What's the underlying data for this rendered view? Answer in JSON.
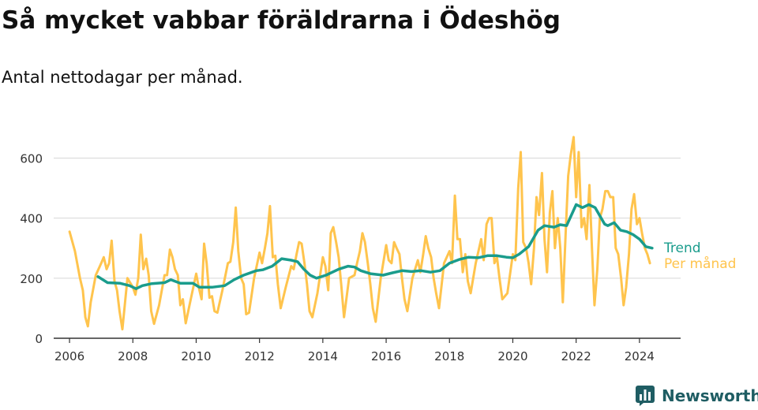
{
  "title": "Så mycket vabbar föräldrarna i Ödeshög",
  "subtitle": "Antal nettodagar per månad.",
  "brand": {
    "name": "Newsworthy",
    "icon": "bar-chart-logo-icon"
  },
  "colors": {
    "trend": "#1a9c8c",
    "monthly": "#ffc44d",
    "grid": "#d7d7d7",
    "axis": "#333333",
    "brand": "#1f5d63"
  },
  "chart_data": {
    "type": "line",
    "title": "Så mycket vabbar föräldrarna i Ödeshög",
    "xlabel": "",
    "ylabel": "",
    "xlim": [
      2005.5,
      2025.3
    ],
    "ylim": [
      0,
      680
    ],
    "yticks": [
      0,
      200,
      400,
      600
    ],
    "xticks": [
      2006,
      2008,
      2010,
      2012,
      2014,
      2016,
      2018,
      2020,
      2022,
      2024
    ],
    "grid": true,
    "legend": "right-end-labels",
    "series": [
      {
        "name": "Per månad",
        "key": "monthly",
        "points": [
          [
            2006.0,
            355
          ],
          [
            2006.17,
            290
          ],
          [
            2006.33,
            200
          ],
          [
            2006.42,
            160
          ],
          [
            2006.5,
            70
          ],
          [
            2006.58,
            40
          ],
          [
            2006.67,
            120
          ],
          [
            2006.83,
            210
          ],
          [
            2007.0,
            250
          ],
          [
            2007.08,
            270
          ],
          [
            2007.17,
            230
          ],
          [
            2007.25,
            250
          ],
          [
            2007.33,
            325
          ],
          [
            2007.42,
            190
          ],
          [
            2007.5,
            160
          ],
          [
            2007.58,
            90
          ],
          [
            2007.67,
            30
          ],
          [
            2007.83,
            200
          ],
          [
            2008.0,
            170
          ],
          [
            2008.08,
            145
          ],
          [
            2008.17,
            200
          ],
          [
            2008.25,
            345
          ],
          [
            2008.33,
            230
          ],
          [
            2008.42,
            265
          ],
          [
            2008.5,
            210
          ],
          [
            2008.58,
            90
          ],
          [
            2008.67,
            48
          ],
          [
            2008.83,
            110
          ],
          [
            2009.0,
            210
          ],
          [
            2009.08,
            210
          ],
          [
            2009.17,
            295
          ],
          [
            2009.25,
            270
          ],
          [
            2009.33,
            230
          ],
          [
            2009.42,
            210
          ],
          [
            2009.5,
            110
          ],
          [
            2009.58,
            130
          ],
          [
            2009.67,
            50
          ],
          [
            2009.83,
            130
          ],
          [
            2010.0,
            215
          ],
          [
            2010.08,
            170
          ],
          [
            2010.17,
            130
          ],
          [
            2010.25,
            315
          ],
          [
            2010.33,
            250
          ],
          [
            2010.42,
            135
          ],
          [
            2010.5,
            140
          ],
          [
            2010.58,
            90
          ],
          [
            2010.67,
            85
          ],
          [
            2010.83,
            160
          ],
          [
            2011.0,
            250
          ],
          [
            2011.08,
            255
          ],
          [
            2011.17,
            320
          ],
          [
            2011.25,
            435
          ],
          [
            2011.33,
            290
          ],
          [
            2011.42,
            200
          ],
          [
            2011.5,
            180
          ],
          [
            2011.58,
            80
          ],
          [
            2011.67,
            85
          ],
          [
            2011.83,
            200
          ],
          [
            2012.0,
            285
          ],
          [
            2012.08,
            250
          ],
          [
            2012.17,
            300
          ],
          [
            2012.25,
            350
          ],
          [
            2012.33,
            440
          ],
          [
            2012.42,
            270
          ],
          [
            2012.5,
            275
          ],
          [
            2012.58,
            180
          ],
          [
            2012.67,
            100
          ],
          [
            2012.83,
            170
          ],
          [
            2013.0,
            240
          ],
          [
            2013.08,
            230
          ],
          [
            2013.17,
            280
          ],
          [
            2013.25,
            320
          ],
          [
            2013.33,
            315
          ],
          [
            2013.42,
            250
          ],
          [
            2013.5,
            180
          ],
          [
            2013.58,
            90
          ],
          [
            2013.67,
            70
          ],
          [
            2013.83,
            150
          ],
          [
            2014.0,
            270
          ],
          [
            2014.08,
            240
          ],
          [
            2014.17,
            160
          ],
          [
            2014.25,
            350
          ],
          [
            2014.33,
            370
          ],
          [
            2014.42,
            320
          ],
          [
            2014.5,
            270
          ],
          [
            2014.58,
            180
          ],
          [
            2014.67,
            70
          ],
          [
            2014.83,
            200
          ],
          [
            2015.0,
            210
          ],
          [
            2015.08,
            250
          ],
          [
            2015.17,
            290
          ],
          [
            2015.25,
            350
          ],
          [
            2015.33,
            320
          ],
          [
            2015.42,
            250
          ],
          [
            2015.5,
            180
          ],
          [
            2015.58,
            100
          ],
          [
            2015.67,
            55
          ],
          [
            2015.83,
            200
          ],
          [
            2016.0,
            310
          ],
          [
            2016.08,
            260
          ],
          [
            2016.17,
            250
          ],
          [
            2016.25,
            320
          ],
          [
            2016.33,
            300
          ],
          [
            2016.42,
            280
          ],
          [
            2016.5,
            200
          ],
          [
            2016.58,
            130
          ],
          [
            2016.67,
            90
          ],
          [
            2016.83,
            200
          ],
          [
            2017.0,
            260
          ],
          [
            2017.08,
            220
          ],
          [
            2017.17,
            280
          ],
          [
            2017.25,
            340
          ],
          [
            2017.33,
            300
          ],
          [
            2017.42,
            270
          ],
          [
            2017.5,
            200
          ],
          [
            2017.58,
            150
          ],
          [
            2017.67,
            100
          ],
          [
            2017.83,
            250
          ],
          [
            2018.0,
            290
          ],
          [
            2018.08,
            250
          ],
          [
            2018.17,
            475
          ],
          [
            2018.25,
            330
          ],
          [
            2018.33,
            330
          ],
          [
            2018.42,
            220
          ],
          [
            2018.5,
            280
          ],
          [
            2018.58,
            190
          ],
          [
            2018.67,
            150
          ],
          [
            2018.83,
            250
          ],
          [
            2019.0,
            330
          ],
          [
            2019.08,
            260
          ],
          [
            2019.17,
            380
          ],
          [
            2019.25,
            400
          ],
          [
            2019.33,
            400
          ],
          [
            2019.42,
            250
          ],
          [
            2019.5,
            270
          ],
          [
            2019.58,
            200
          ],
          [
            2019.67,
            130
          ],
          [
            2019.83,
            150
          ],
          [
            2020.0,
            280
          ],
          [
            2020.08,
            260
          ],
          [
            2020.17,
            500
          ],
          [
            2020.25,
            620
          ],
          [
            2020.33,
            320
          ],
          [
            2020.42,
            300
          ],
          [
            2020.5,
            250
          ],
          [
            2020.58,
            180
          ],
          [
            2020.67,
            300
          ],
          [
            2020.75,
            470
          ],
          [
            2020.83,
            410
          ],
          [
            2020.92,
            550
          ],
          [
            2021.0,
            330
          ],
          [
            2021.08,
            220
          ],
          [
            2021.17,
            420
          ],
          [
            2021.25,
            490
          ],
          [
            2021.33,
            300
          ],
          [
            2021.42,
            400
          ],
          [
            2021.5,
            300
          ],
          [
            2021.58,
            120
          ],
          [
            2021.67,
            350
          ],
          [
            2021.75,
            540
          ],
          [
            2021.83,
            610
          ],
          [
            2021.92,
            670
          ],
          [
            2022.0,
            470
          ],
          [
            2022.08,
            620
          ],
          [
            2022.17,
            370
          ],
          [
            2022.25,
            400
          ],
          [
            2022.33,
            330
          ],
          [
            2022.42,
            510
          ],
          [
            2022.5,
            300
          ],
          [
            2022.58,
            110
          ],
          [
            2022.67,
            230
          ],
          [
            2022.75,
            400
          ],
          [
            2022.83,
            430
          ],
          [
            2022.92,
            490
          ],
          [
            2023.0,
            490
          ],
          [
            2023.08,
            470
          ],
          [
            2023.17,
            470
          ],
          [
            2023.25,
            300
          ],
          [
            2023.33,
            280
          ],
          [
            2023.42,
            200
          ],
          [
            2023.5,
            110
          ],
          [
            2023.58,
            170
          ],
          [
            2023.67,
            280
          ],
          [
            2023.75,
            430
          ],
          [
            2023.83,
            480
          ],
          [
            2023.92,
            380
          ],
          [
            2024.0,
            400
          ],
          [
            2024.08,
            350
          ],
          [
            2024.17,
            300
          ],
          [
            2024.25,
            280
          ],
          [
            2024.33,
            250
          ]
        ]
      },
      {
        "name": "Trend",
        "key": "trend",
        "points": [
          [
            2006.9,
            205
          ],
          [
            2007.2,
            185
          ],
          [
            2007.6,
            183
          ],
          [
            2007.9,
            175
          ],
          [
            2008.1,
            165
          ],
          [
            2008.3,
            175
          ],
          [
            2008.6,
            182
          ],
          [
            2009.0,
            185
          ],
          [
            2009.2,
            195
          ],
          [
            2009.5,
            183
          ],
          [
            2009.9,
            183
          ],
          [
            2010.1,
            170
          ],
          [
            2010.5,
            170
          ],
          [
            2010.9,
            175
          ],
          [
            2011.2,
            195
          ],
          [
            2011.5,
            210
          ],
          [
            2011.9,
            225
          ],
          [
            2012.1,
            228
          ],
          [
            2012.4,
            240
          ],
          [
            2012.7,
            265
          ],
          [
            2013.0,
            260
          ],
          [
            2013.2,
            255
          ],
          [
            2013.4,
            230
          ],
          [
            2013.6,
            210
          ],
          [
            2013.8,
            200
          ],
          [
            2014.1,
            210
          ],
          [
            2014.5,
            230
          ],
          [
            2014.8,
            240
          ],
          [
            2015.0,
            237
          ],
          [
            2015.2,
            225
          ],
          [
            2015.5,
            215
          ],
          [
            2015.9,
            210
          ],
          [
            2016.2,
            218
          ],
          [
            2016.5,
            225
          ],
          [
            2016.8,
            222
          ],
          [
            2017.1,
            225
          ],
          [
            2017.4,
            220
          ],
          [
            2017.7,
            225
          ],
          [
            2018.0,
            250
          ],
          [
            2018.3,
            262
          ],
          [
            2018.6,
            270
          ],
          [
            2018.9,
            268
          ],
          [
            2019.2,
            275
          ],
          [
            2019.5,
            275
          ],
          [
            2019.8,
            270
          ],
          [
            2020.0,
            268
          ],
          [
            2020.2,
            280
          ],
          [
            2020.5,
            305
          ],
          [
            2020.8,
            360
          ],
          [
            2021.0,
            375
          ],
          [
            2021.3,
            370
          ],
          [
            2021.5,
            378
          ],
          [
            2021.7,
            375
          ],
          [
            2022.0,
            445
          ],
          [
            2022.2,
            435
          ],
          [
            2022.4,
            445
          ],
          [
            2022.6,
            435
          ],
          [
            2022.9,
            380
          ],
          [
            2023.0,
            375
          ],
          [
            2023.2,
            385
          ],
          [
            2023.4,
            360
          ],
          [
            2023.6,
            355
          ],
          [
            2023.8,
            345
          ],
          [
            2024.0,
            330
          ],
          [
            2024.2,
            305
          ],
          [
            2024.4,
            300
          ]
        ]
      }
    ]
  }
}
